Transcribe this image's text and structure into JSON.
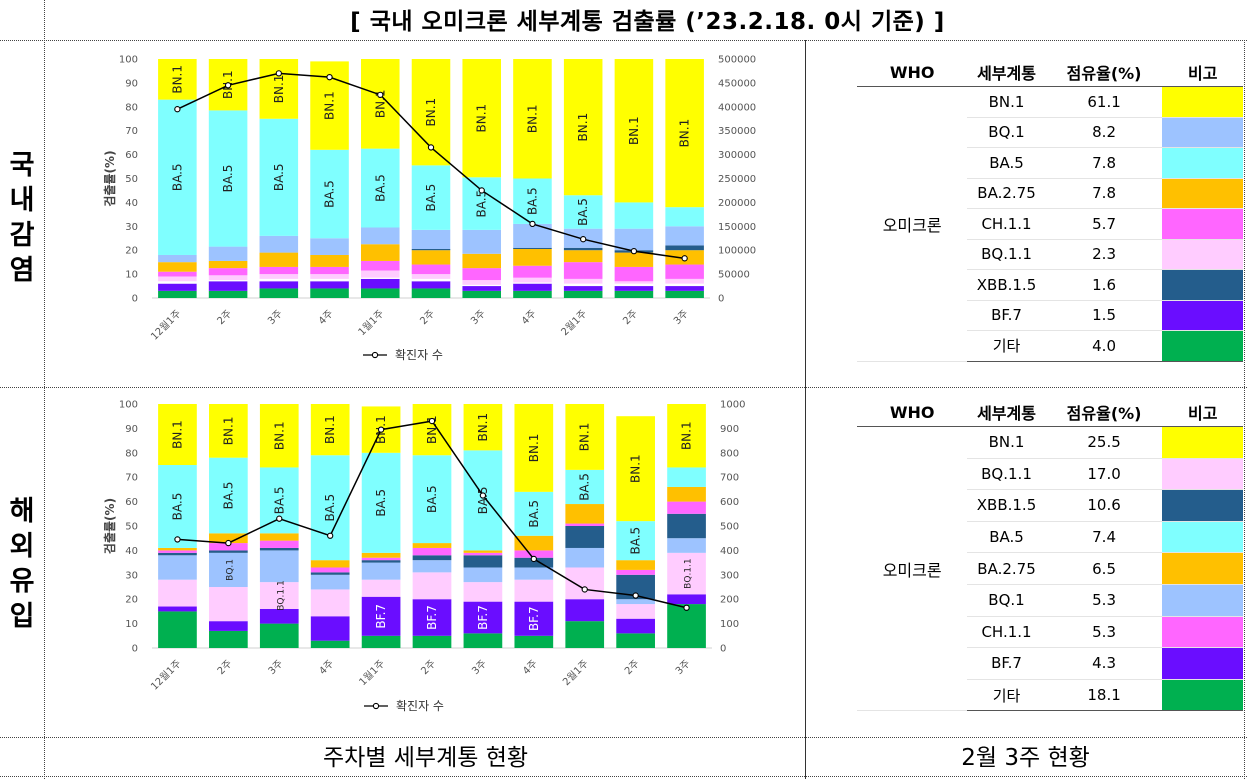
{
  "title": "[ 국내 오미크론 세부계통 검출률 (’23.2.18. 0시 기준) ]",
  "row_labels": {
    "domestic": [
      "국",
      "내",
      "감",
      "염"
    ],
    "overseas": [
      "해",
      "외",
      "유",
      "입"
    ]
  },
  "footer": {
    "left": "주차별 세부계통 현황",
    "right": "2월 3주 현황"
  },
  "colors": {
    "BN.1": "#FFFF00",
    "BQ.1": "#9DC3FF",
    "BA.5": "#7FFFFF",
    "BA.2.75": "#FFC000",
    "CH.1.1": "#FF66FF",
    "BQ.1.1": "#FFCCFF",
    "XBB.1.5": "#245D8C",
    "BF.7": "#6A0DFF",
    "기타": "#00B050",
    "white": "#FFFFFF",
    "line": "#000000"
  },
  "chart_data": [
    {
      "name": "domestic",
      "type": "bar",
      "stacked": true,
      "title": "",
      "xlabel": "",
      "ylabel": "검출률(%)",
      "ylim": [
        0,
        100
      ],
      "yticks": [
        0,
        10,
        20,
        30,
        40,
        50,
        60,
        70,
        80,
        90,
        100
      ],
      "y2lim": [
        0,
        500000
      ],
      "y2ticks": [
        0,
        50000,
        100000,
        150000,
        200000,
        250000,
        300000,
        350000,
        400000,
        450000,
        500000
      ],
      "categories": [
        "12월1주",
        "2주",
        "3주",
        "4주",
        "1월1주",
        "2주",
        "3주",
        "4주",
        "2월1주",
        "2주",
        "3주"
      ],
      "series": [
        {
          "name": "기타",
          "values": [
            3,
            3,
            4,
            4,
            4,
            4,
            3,
            3,
            3,
            3,
            3
          ]
        },
        {
          "name": "BF.7",
          "values": [
            3,
            4,
            3,
            3,
            4,
            3,
            2,
            3,
            2,
            2,
            2
          ]
        },
        {
          "name": "white",
          "values": [
            1,
            0.5,
            1,
            1,
            0.5,
            1,
            0.5,
            0.5,
            1,
            1,
            1
          ]
        },
        {
          "name": "BQ.1.1",
          "values": [
            2,
            2,
            2,
            2,
            3,
            2,
            2,
            2,
            2,
            1,
            2
          ]
        },
        {
          "name": "CH.1.1",
          "values": [
            2,
            3,
            3,
            3,
            4,
            4,
            5,
            5,
            7,
            6,
            6
          ]
        },
        {
          "name": "BA.2.75",
          "values": [
            4,
            3,
            6,
            5,
            7,
            6,
            6,
            7,
            5,
            6,
            6
          ]
        },
        {
          "name": "XBB.1.5",
          "values": [
            0,
            0,
            0,
            0,
            0,
            0.5,
            0,
            0.5,
            1,
            1,
            2
          ]
        },
        {
          "name": "BQ.1",
          "values": [
            3,
            6,
            7,
            7,
            7,
            8,
            10,
            10,
            8,
            9,
            8
          ]
        },
        {
          "name": "BA.5",
          "values": [
            65,
            57,
            49,
            37,
            33,
            27,
            22,
            19,
            14,
            11,
            8
          ]
        },
        {
          "name": "BN.1",
          "values": [
            17,
            21.5,
            25,
            37,
            37.5,
            44.5,
            49.5,
            50,
            57,
            60,
            62
          ]
        }
      ],
      "bar_labels": [
        {
          "series": "BN.1",
          "indices": [
            0,
            1,
            2,
            3,
            4,
            5,
            6,
            7,
            8,
            9,
            10
          ],
          "text": "BN.1"
        },
        {
          "series": "BA.5",
          "indices": [
            0,
            1,
            2,
            3,
            4,
            5,
            6,
            7,
            8
          ],
          "text": "BA.5"
        }
      ],
      "line": {
        "name": "확진자 수",
        "values": [
          395000,
          445000,
          470000,
          462000,
          425000,
          315000,
          225000,
          155000,
          123000,
          98000,
          83000
        ]
      },
      "legend": "bottom"
    },
    {
      "name": "overseas",
      "type": "bar",
      "stacked": true,
      "title": "",
      "xlabel": "",
      "ylabel": "검출률(%)",
      "ylim": [
        0,
        100
      ],
      "yticks": [
        0,
        10,
        20,
        30,
        40,
        50,
        60,
        70,
        80,
        90,
        100
      ],
      "y2lim": [
        0,
        1000
      ],
      "y2ticks": [
        0,
        100,
        200,
        300,
        400,
        500,
        600,
        700,
        800,
        900,
        1000
      ],
      "categories": [
        "12월1주",
        "2주",
        "3주",
        "4주",
        "1월1주",
        "2주",
        "3주",
        "4주",
        "2월1주",
        "2주",
        "3주"
      ],
      "series": [
        {
          "name": "기타",
          "values": [
            15,
            7,
            10,
            3,
            5,
            5,
            6,
            5,
            11,
            6,
            18
          ]
        },
        {
          "name": "BF.7",
          "values": [
            2,
            4,
            6,
            10,
            16,
            15,
            13,
            14,
            9,
            6,
            4
          ]
        },
        {
          "name": "BQ.1.1",
          "values": [
            11,
            14,
            11,
            11,
            7,
            11,
            8,
            9,
            13,
            6,
            17
          ]
        },
        {
          "name": "BQ.1",
          "values": [
            10,
            14,
            13,
            6,
            7,
            5,
            6,
            5,
            8,
            2,
            6
          ]
        },
        {
          "name": "XBB.1.5",
          "values": [
            1,
            1,
            1,
            1,
            1,
            2,
            5,
            4,
            9,
            10,
            10
          ]
        },
        {
          "name": "CH.1.1",
          "values": [
            1,
            3,
            3,
            2,
            1,
            3,
            1,
            3,
            1,
            2,
            5
          ]
        },
        {
          "name": "BA.2.75",
          "values": [
            1,
            4,
            3,
            3,
            2,
            2,
            1,
            6,
            8,
            4,
            6
          ]
        },
        {
          "name": "BA.5",
          "values": [
            34,
            31,
            27,
            43,
            41,
            36,
            41,
            18,
            14,
            16,
            8
          ]
        },
        {
          "name": "BN.1",
          "values": [
            25,
            22,
            26,
            21,
            19,
            21,
            19,
            36,
            27,
            43,
            26
          ]
        }
      ],
      "bar_labels": [
        {
          "series": "BN.1",
          "indices": [
            0,
            1,
            2,
            3,
            4,
            5,
            6,
            7,
            8,
            9,
            10
          ],
          "text": "BN.1"
        },
        {
          "series": "BA.5",
          "indices": [
            0,
            1,
            2,
            3,
            4,
            5,
            6,
            7,
            8,
            9
          ],
          "text": "BA.5"
        },
        {
          "series": "BF.7",
          "indices": [
            4,
            5,
            6,
            7
          ],
          "text": "BF.7"
        },
        {
          "series": "BQ.1.1",
          "indices": [
            2,
            10
          ],
          "text": "BQ.1.1"
        },
        {
          "series": "BQ.1",
          "indices": [
            1
          ],
          "text": "BQ.1"
        }
      ],
      "line": {
        "name": "확진자 수",
        "values": [
          445,
          430,
          530,
          460,
          895,
          930,
          625,
          365,
          240,
          215,
          165
        ]
      },
      "legend": "bottom"
    },
    {
      "name": "domestic-share",
      "type": "table",
      "columns": [
        "WHO",
        "세부계통",
        "점유율(%)",
        "비고"
      ],
      "group": "오미크론",
      "rows": [
        {
          "lineage": "BN.1",
          "share": "61.1"
        },
        {
          "lineage": "BQ.1",
          "share": "8.2"
        },
        {
          "lineage": "BA.5",
          "share": "7.8"
        },
        {
          "lineage": "BA.2.75",
          "share": "7.8"
        },
        {
          "lineage": "CH.1.1",
          "share": "5.7"
        },
        {
          "lineage": "BQ.1.1",
          "share": "2.3"
        },
        {
          "lineage": "XBB.1.5",
          "share": "1.6"
        },
        {
          "lineage": "BF.7",
          "share": "1.5"
        },
        {
          "lineage": "기타",
          "share": "4.0"
        }
      ]
    },
    {
      "name": "overseas-share",
      "type": "table",
      "columns": [
        "WHO",
        "세부계통",
        "점유율(%)",
        "비고"
      ],
      "group": "오미크론",
      "rows": [
        {
          "lineage": "BN.1",
          "share": "25.5"
        },
        {
          "lineage": "BQ.1.1",
          "share": "17.0"
        },
        {
          "lineage": "XBB.1.5",
          "share": "10.6"
        },
        {
          "lineage": "BA.5",
          "share": "7.4"
        },
        {
          "lineage": "BA.2.75",
          "share": "6.5"
        },
        {
          "lineage": "BQ.1",
          "share": "5.3"
        },
        {
          "lineage": "CH.1.1",
          "share": "5.3"
        },
        {
          "lineage": "BF.7",
          "share": "4.3"
        },
        {
          "lineage": "기타",
          "share": "18.1"
        }
      ]
    }
  ]
}
